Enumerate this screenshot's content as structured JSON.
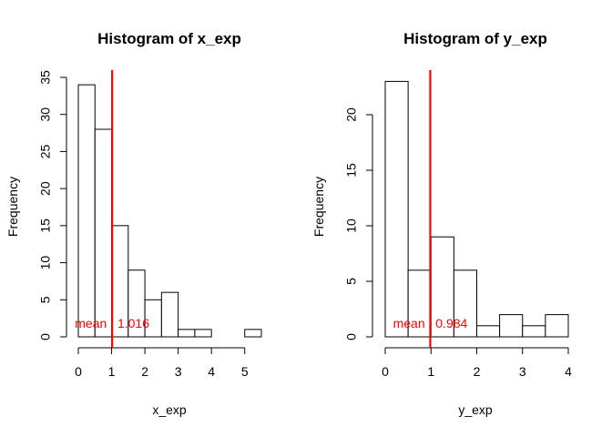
{
  "chart_data": [
    {
      "type": "bar",
      "title": "Histogram of x_exp",
      "xlabel": "x_exp",
      "ylabel": "Frequency",
      "bin_edges": [
        0,
        0.5,
        1,
        1.5,
        2,
        2.5,
        3,
        3.5,
        4,
        4.5,
        5,
        5.5
      ],
      "values": [
        34,
        28,
        15,
        9,
        5,
        6,
        1,
        1,
        0,
        0,
        1
      ],
      "xlim": [
        0,
        5.5
      ],
      "ylim": [
        0,
        35
      ],
      "x_ticks": [
        0,
        1,
        2,
        3,
        4,
        5
      ],
      "x_tick_labels": [
        "0",
        "1",
        "2",
        "3",
        "4",
        "5"
      ],
      "y_ticks": [
        0,
        5,
        10,
        15,
        20,
        25,
        30,
        35
      ],
      "y_tick_labels": [
        "0",
        "5",
        "10",
        "15",
        "20",
        "25",
        "30",
        "35"
      ],
      "mean_line": {
        "x": 1.016,
        "label": "mean   1.016",
        "color": "#ff0000"
      },
      "grid": false
    },
    {
      "type": "bar",
      "title": "Histogram of y_exp",
      "xlabel": "y_exp",
      "ylabel": "Frequency",
      "bin_edges": [
        0,
        0.5,
        1,
        1.5,
        2,
        2.5,
        3,
        3.5,
        4
      ],
      "values": [
        23,
        6,
        9,
        6,
        1,
        2,
        1,
        2
      ],
      "xlim": [
        0,
        4
      ],
      "ylim": [
        0,
        23
      ],
      "x_ticks": [
        0,
        1,
        2,
        3,
        4
      ],
      "x_tick_labels": [
        "0",
        "1",
        "2",
        "3",
        "4"
      ],
      "y_ticks": [
        0,
        5,
        10,
        15,
        20
      ],
      "y_tick_labels": [
        "0",
        "5",
        "10",
        "15",
        "20"
      ],
      "mean_line": {
        "x": 0.984,
        "label": "mean   0.984",
        "color": "#ff0000"
      },
      "grid": false
    }
  ]
}
